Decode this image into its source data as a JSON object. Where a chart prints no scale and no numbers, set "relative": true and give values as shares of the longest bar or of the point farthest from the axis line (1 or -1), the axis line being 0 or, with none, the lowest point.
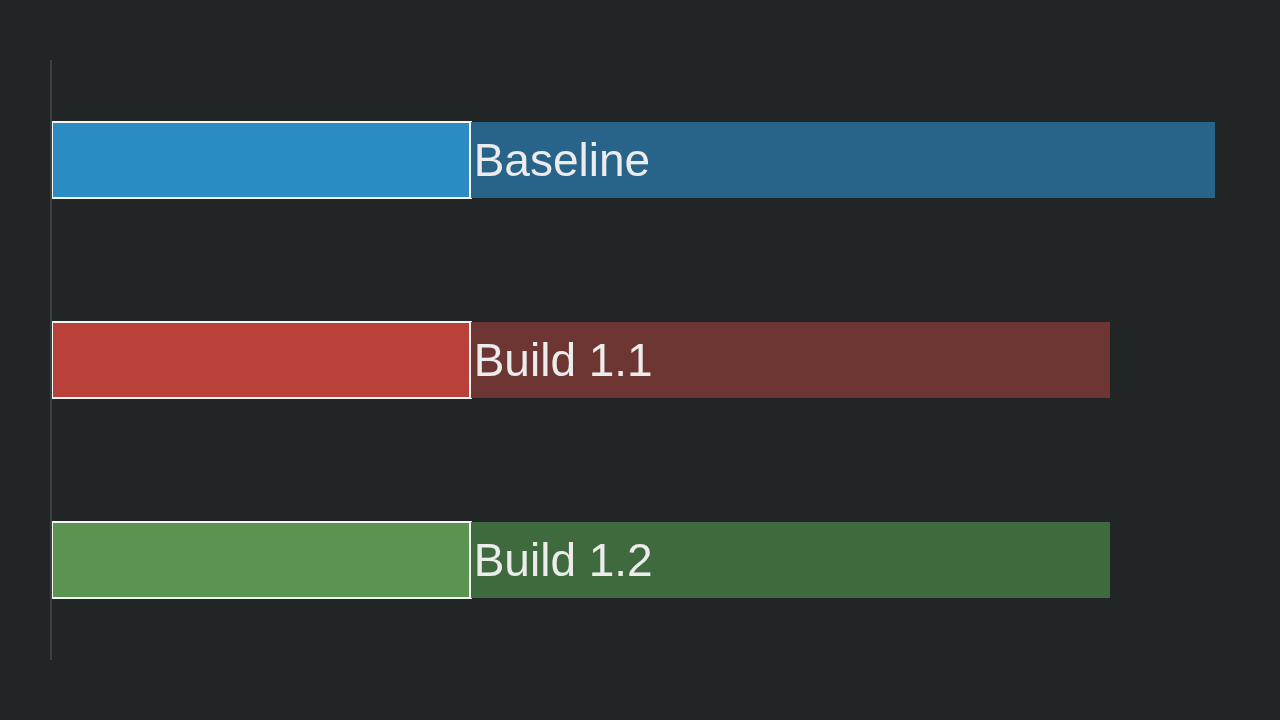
{
  "chart_data": {
    "type": "bar",
    "orientation": "horizontal",
    "stacked": true,
    "relative": true,
    "categories": [
      "Baseline",
      "Build 1.1",
      "Build 1.2"
    ],
    "series": [
      {
        "colors": [
          "#2b8cc4",
          "#b9413a",
          "#5a9450"
        ],
        "values": [
          0.36,
          0.36,
          0.36
        ]
      },
      {
        "colors": [
          "#28638a",
          "#6e3632",
          "#3f6a3e"
        ],
        "values": [
          0.64,
          0.55,
          0.55
        ]
      }
    ],
    "tick_labels": "y",
    "grid": false
  }
}
